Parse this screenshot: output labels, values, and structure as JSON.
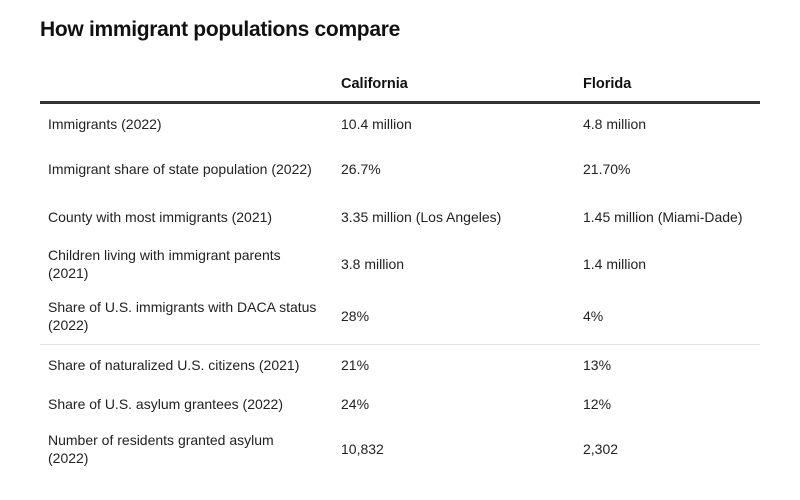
{
  "title": "How immigrant populations compare",
  "chart_data": {
    "type": "table",
    "columns": [
      "",
      "California",
      "Florida"
    ],
    "rows": [
      {
        "label": "Immigrants (2022)",
        "california": "10.4 million",
        "florida": "4.8 million"
      },
      {
        "label": "Immigrant share of state population (2022)",
        "california": "26.7%",
        "florida": "21.70%"
      },
      {
        "label": "County with most immigrants (2021)",
        "california": "3.35 million (Los Angeles)",
        "florida": "1.45 million (Miami-Dade)"
      },
      {
        "label": "Children living with immigrant parents (2021)",
        "california": "3.8 million",
        "florida": "1.4 million"
      },
      {
        "label": "Share of U.S. immigrants with DACA status (2022)",
        "california": "28%",
        "florida": "4%"
      },
      {
        "label": "Share of naturalized U.S. citizens (2021)",
        "california": "21%",
        "florida": "13%"
      },
      {
        "label": "Share of U.S. asylum grantees (2022)",
        "california": "24%",
        "florida": "12%"
      },
      {
        "label": "Number of residents granted asylum (2022)",
        "california": "10,832",
        "florida": "2,302"
      }
    ]
  }
}
